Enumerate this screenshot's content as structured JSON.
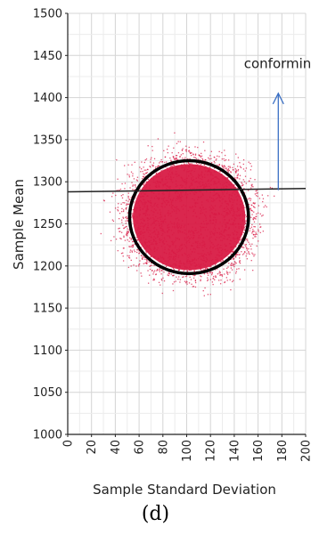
{
  "chart_data": {
    "type": "scatter",
    "xlabel": "Sample Standard Deviation",
    "ylabel": "Sample Mean",
    "xlim": [
      0,
      200
    ],
    "ylim": [
      1000,
      1500
    ],
    "xticks": [
      0,
      20,
      40,
      60,
      80,
      100,
      120,
      140,
      160,
      180,
      200
    ],
    "yticks": [
      1000,
      1050,
      1100,
      1150,
      1200,
      1250,
      1300,
      1350,
      1400,
      1450,
      1500
    ],
    "grid": true,
    "point_cloud": {
      "center": [
        102,
        1258
      ],
      "spread_x": 45,
      "spread_y": 60,
      "color": "#d81b45"
    },
    "ellipse": {
      "center": [
        102,
        1258
      ],
      "rx": 50,
      "ry": 67,
      "color": "#000000"
    },
    "boundary_line": {
      "x": [
        0,
        200
      ],
      "y": [
        1288,
        1292
      ],
      "color": "#222222"
    },
    "arrow": {
      "x": 177,
      "from_y": 1290,
      "to_y": 1405,
      "color": "#3a6fc4"
    },
    "annotation": {
      "text": "conforming",
      "x": 180,
      "y": 1435
    }
  },
  "caption": "(d)"
}
